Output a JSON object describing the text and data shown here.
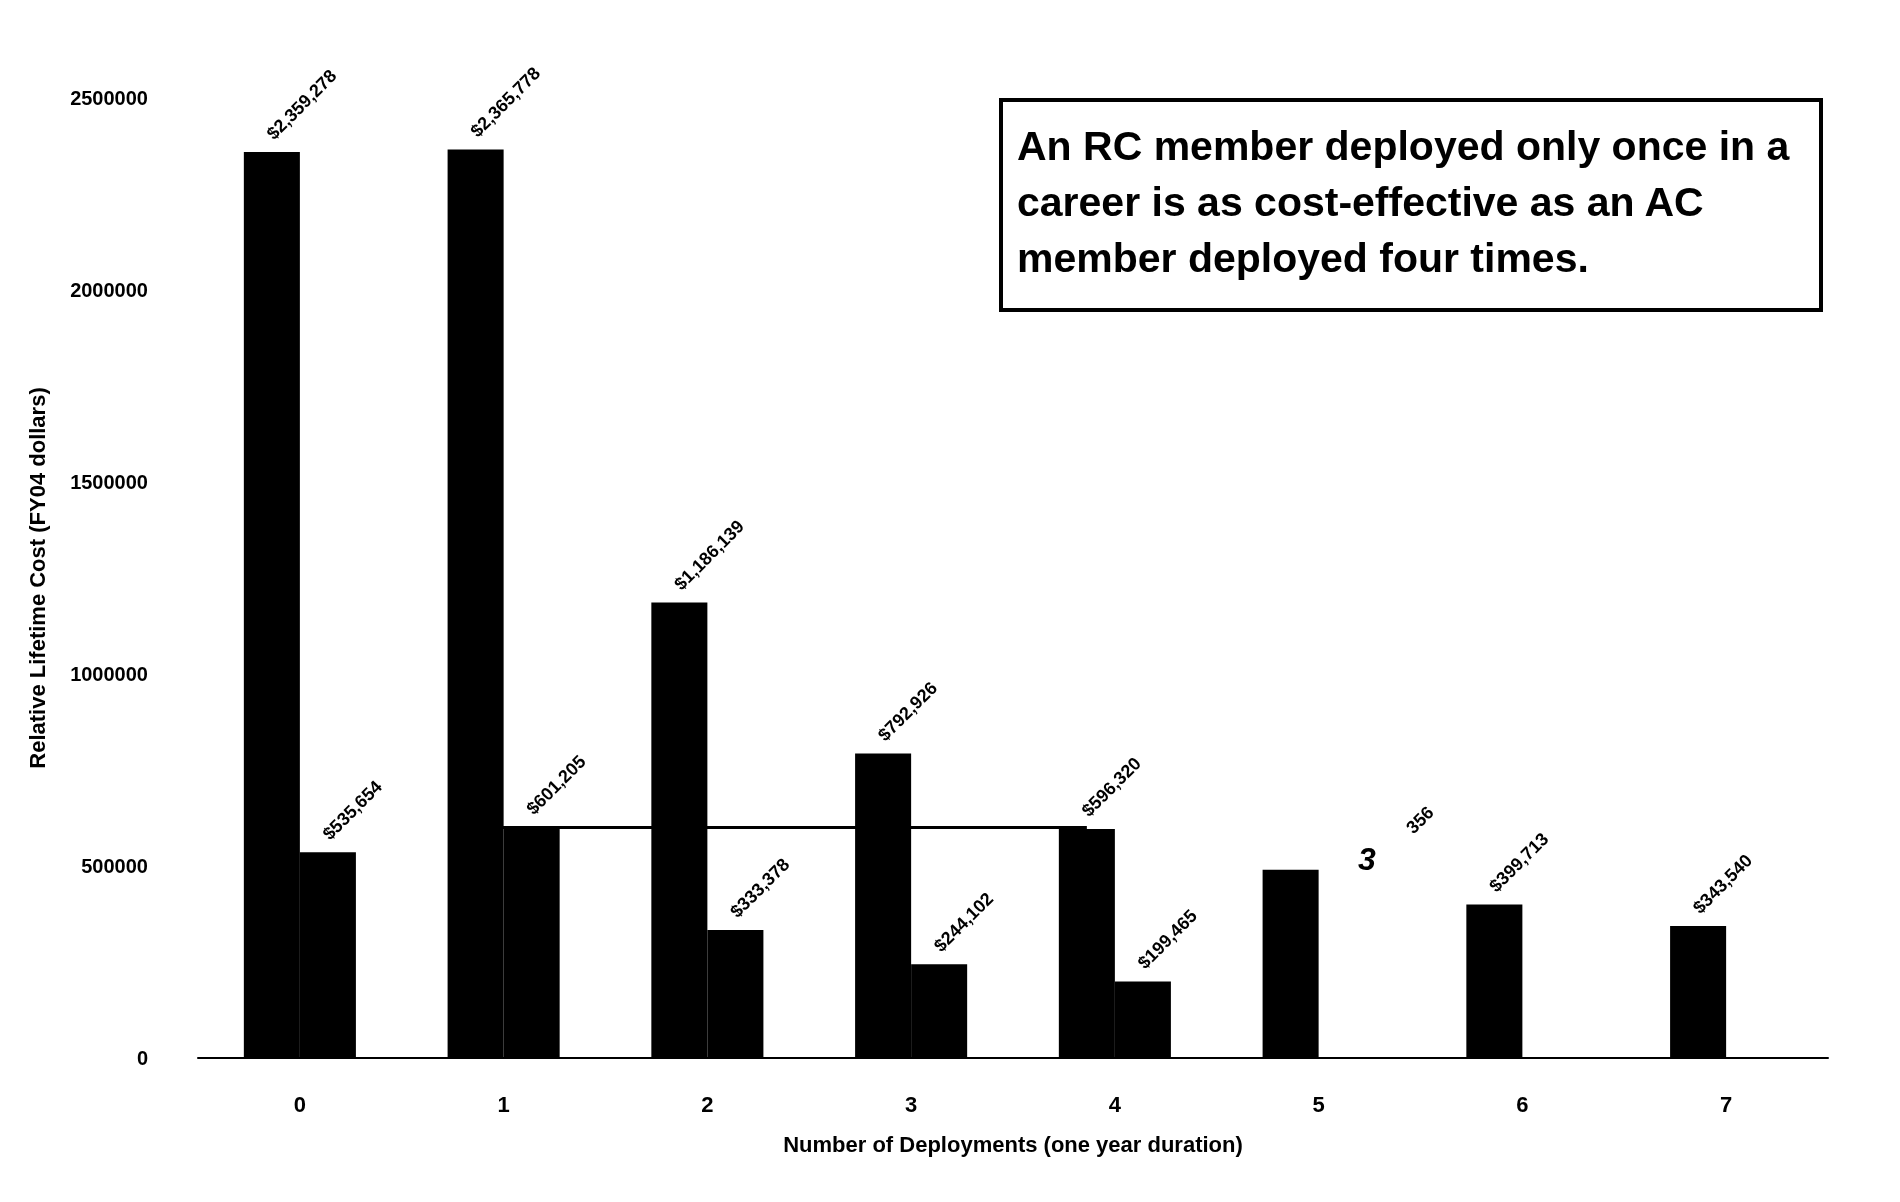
{
  "chart_data": {
    "type": "bar",
    "xlabel": "Number of Deployments (one year duration)",
    "ylabel": "Relative Lifetime Cost (FY04 dollars)",
    "categories": [
      "0",
      "1",
      "2",
      "3",
      "4",
      "5",
      "6",
      "7"
    ],
    "series": [
      {
        "color": "#000000",
        "values": [
          2359278,
          2365778,
          1186139,
          792926,
          596320,
          490000,
          399713,
          343540
        ],
        "value_labels": [
          "$2,359,278",
          "$2,365,778",
          "$1,186,139",
          "$792,926",
          "$596,320",
          null,
          "$399,713",
          "$343,540"
        ]
      },
      {
        "color": "#000000",
        "values": [
          535654,
          601205,
          333378,
          244102,
          199465,
          null,
          null,
          null
        ],
        "value_labels": [
          "$535,654",
          "$601,205",
          "$333,378",
          "$244,102",
          "$199,465",
          null,
          null,
          null
        ]
      }
    ],
    "ylim": [
      0,
      2500000
    ],
    "yticks": [
      0,
      500000,
      1000000,
      1500000,
      2000000,
      2500000
    ],
    "grid": false,
    "ref_lines": [
      {
        "axis": "y",
        "value": 601205,
        "color": "#000000",
        "line_style": "solid"
      }
    ],
    "annotations": [
      "An RC member deployed only once in a career is as cost-effective as an AC member deployed four times.",
      "356",
      "3"
    ]
  }
}
